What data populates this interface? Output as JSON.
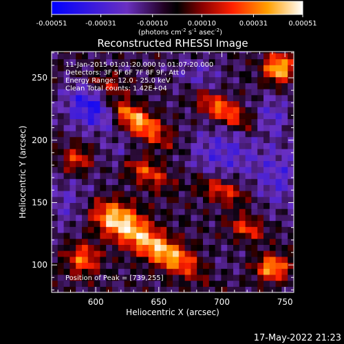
{
  "chart_data": {
    "type": "heatmap",
    "title": "Reconstructed RHESSI Image",
    "xlabel": "Heliocentric X (arcsec)",
    "ylabel": "Heliocentric Y (arcsec)",
    "xlim": [
      565,
      757
    ],
    "ylim": [
      78,
      271
    ],
    "xticks": [
      600,
      650,
      700,
      750
    ],
    "yticks": [
      100,
      150,
      200,
      250
    ],
    "colorbar": {
      "ticks": [
        "-0.00051",
        "-0.00031",
        "-0.00010",
        "0.00010",
        "0.00031",
        "0.00051"
      ],
      "tick_values": [
        -0.00051,
        -0.00031,
        -0.0001,
        0.0001,
        0.00031,
        0.00051
      ],
      "range": [
        -0.00051,
        0.00051
      ]
    },
    "units_label": "(photons cm",
    "units_exp1": "-2",
    "units_mid": " s",
    "units_exp2": "-1",
    "units_mid2": " asec",
    "units_exp3": "-2",
    "units_end": ")",
    "annotations": [
      "11-Jan-2015 01:01:20.000 to 01:07:20.000",
      "Detectors: 3F 5F 6F 7F 8F 9F, Att 0",
      "Energy Range: 12.0 - 25.0 keV",
      "Clean      Total counts: 1.42E+04"
    ],
    "peak_label": "Position of Peak = [739,255]",
    "peak_position": [
      739,
      255
    ],
    "bright_sources": [
      {
        "x": 630,
        "y": 218,
        "sx": 22,
        "sy": 7,
        "angle": -35,
        "value": 0.0005
      },
      {
        "x": 615,
        "y": 138,
        "sx": 18,
        "sy": 10,
        "angle": -25,
        "value": 0.00048
      },
      {
        "x": 655,
        "y": 110,
        "sx": 26,
        "sy": 8,
        "angle": -30,
        "value": 0.00049
      },
      {
        "x": 700,
        "y": 225,
        "sx": 18,
        "sy": 6,
        "angle": -30,
        "value": 0.0004
      },
      {
        "x": 745,
        "y": 258,
        "sx": 8,
        "sy": 8,
        "angle": 0,
        "value": 0.00051
      },
      {
        "x": 740,
        "y": 98,
        "sx": 9,
        "sy": 7,
        "angle": 0,
        "value": 0.00045
      },
      {
        "x": 590,
        "y": 105,
        "sx": 9,
        "sy": 9,
        "angle": 0,
        "value": 0.00035
      },
      {
        "x": 700,
        "y": 160,
        "sx": 14,
        "sy": 6,
        "angle": -20,
        "value": 0.0003
      },
      {
        "x": 640,
        "y": 175,
        "sx": 15,
        "sy": 7,
        "angle": -30,
        "value": 0.0003
      },
      {
        "x": 585,
        "y": 185,
        "sx": 8,
        "sy": 8,
        "angle": 0,
        "value": 0.00028
      },
      {
        "x": 720,
        "y": 130,
        "sx": 10,
        "sy": 6,
        "angle": -20,
        "value": 0.0003
      },
      {
        "x": 610,
        "y": 245,
        "sx": 12,
        "sy": 7,
        "angle": -15,
        "value": 0.0003
      }
    ],
    "negative_sources": [
      {
        "x": 600,
        "y": 230,
        "sx": 16,
        "sy": 14,
        "value": -0.0004
      },
      {
        "x": 585,
        "y": 150,
        "sx": 18,
        "sy": 14,
        "value": -0.0002
      },
      {
        "x": 700,
        "y": 190,
        "sx": 20,
        "sy": 14,
        "value": -0.00022
      },
      {
        "x": 745,
        "y": 170,
        "sx": 14,
        "sy": 18,
        "value": -0.0002
      },
      {
        "x": 680,
        "y": 250,
        "sx": 14,
        "sy": 12,
        "value": -0.00015
      },
      {
        "x": 740,
        "y": 220,
        "sx": 10,
        "sy": 12,
        "value": -0.00018
      },
      {
        "x": 690,
        "y": 95,
        "sx": 16,
        "sy": 10,
        "value": -0.0001
      },
      {
        "x": 620,
        "y": 190,
        "sx": 10,
        "sy": 8,
        "value": -0.00015
      }
    ]
  },
  "footer": {
    "timestamp": "17-May-2022 21:23"
  }
}
